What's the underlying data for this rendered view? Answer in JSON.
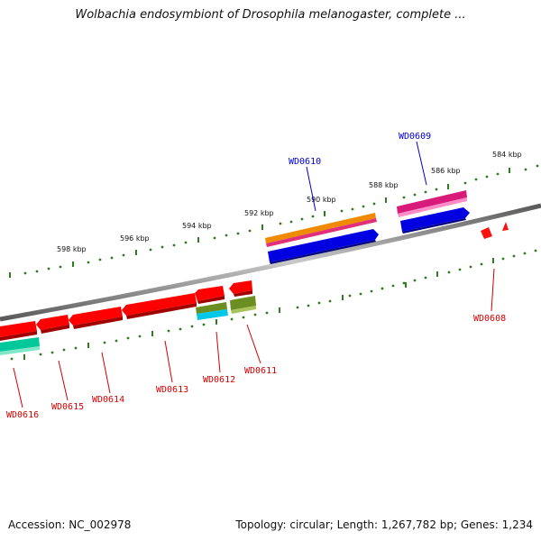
{
  "title": "Wolbachia endosymbiont of Drosophila melanogaster, complete ...",
  "footer": {
    "accession": "Accession: NC_002978",
    "stats": "Topology: circular; Length: 1,267,782 bp; Genes: 1,234"
  },
  "colors": {
    "backbone": "#888888",
    "tick": "#2e7d1f",
    "label_red": "#d40000",
    "label_blue": "#0000cc"
  },
  "kbp_labels": [
    "584 kbp",
    "586 kbp",
    "588 kbp",
    "590 kbp",
    "592 kbp",
    "594 kbp",
    "596 kbp",
    "598 kbp"
  ],
  "genes": [
    {
      "id": "WD0608",
      "color": "red"
    },
    {
      "id": "WD0609",
      "color": "blue"
    },
    {
      "id": "WD0610",
      "color": "blue"
    },
    {
      "id": "WD0611",
      "color": "red"
    },
    {
      "id": "WD0612",
      "color": "red"
    },
    {
      "id": "WD0613",
      "color": "red"
    },
    {
      "id": "WD0614",
      "color": "red"
    },
    {
      "id": "WD0615",
      "color": "red"
    },
    {
      "id": "WD0616",
      "color": "red"
    }
  ]
}
